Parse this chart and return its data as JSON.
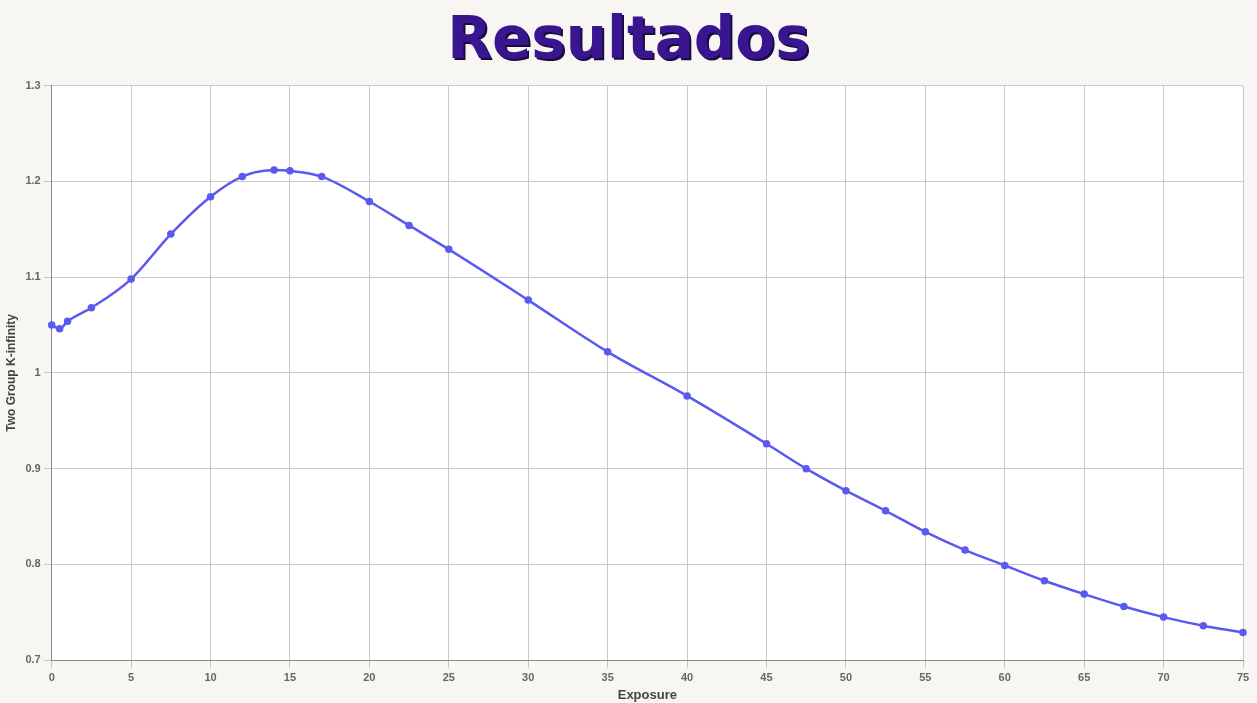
{
  "chart_data": {
    "type": "line",
    "title": "Resultados",
    "xlabel": "Exposure",
    "ylabel": "Two Group K-infinity",
    "x": [
      0,
      0.5,
      1,
      2.5,
      5,
      7.5,
      10,
      12,
      14,
      15,
      17,
      20,
      22.5,
      25,
      30,
      35,
      40,
      45,
      47.5,
      50,
      52.5,
      55,
      57.5,
      60,
      62.5,
      65,
      67.5,
      70,
      72.5,
      75
    ],
    "series": [
      {
        "color": "#5a5af0",
        "values": [
          1.05,
          1.046,
          1.054,
          1.068,
          1.098,
          1.145,
          1.184,
          1.205,
          1.212,
          1.211,
          1.205,
          1.179,
          1.154,
          1.129,
          1.076,
          1.022,
          0.976,
          0.926,
          0.9,
          0.877,
          0.856,
          0.834,
          0.815,
          0.799,
          0.783,
          0.769,
          0.756,
          0.745,
          0.736,
          0.729
        ]
      }
    ],
    "xlim": [
      0,
      75
    ],
    "xticks": [
      0,
      5,
      10,
      15,
      20,
      25,
      30,
      35,
      40,
      45,
      50,
      55,
      60,
      65,
      70,
      75
    ],
    "ylim": [
      0.7,
      1.3
    ],
    "yticks": [
      0.7,
      0.8,
      0.9,
      1,
      1.1,
      1.2,
      1.3
    ],
    "grid": true,
    "legend": false,
    "marker": "circle",
    "line_style": "solid"
  }
}
